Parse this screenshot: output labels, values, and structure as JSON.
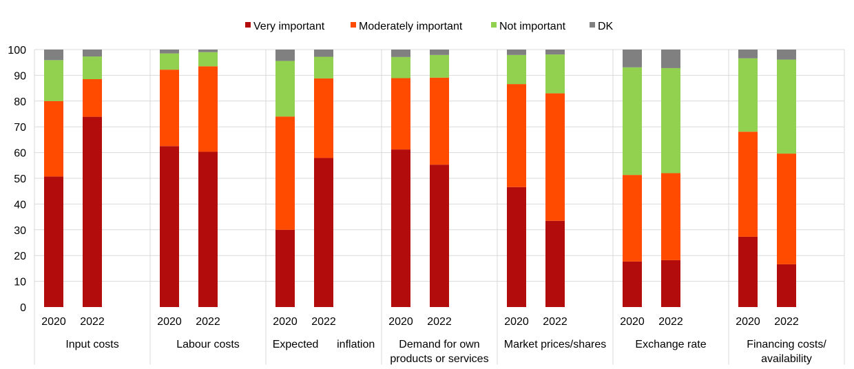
{
  "chart_data": {
    "type": "bar",
    "stacked": true,
    "groups": [
      {
        "label_lines": [
          "Input costs"
        ],
        "years": [
          "2020",
          "2022"
        ]
      },
      {
        "label_lines": [
          "Labour costs"
        ],
        "years": [
          "2020",
          "2022"
        ]
      },
      {
        "label_lines": [
          "Expected      inflation"
        ],
        "years": [
          "2020",
          "2022"
        ]
      },
      {
        "label_lines": [
          "Demand for own",
          "products or services"
        ],
        "years": [
          "2020",
          "2022"
        ]
      },
      {
        "label_lines": [
          "Market prices/shares"
        ],
        "years": [
          "2020",
          "2022"
        ]
      },
      {
        "label_lines": [
          "Exchange rate"
        ],
        "years": [
          "2020",
          "2022"
        ]
      },
      {
        "label_lines": [
          "Financing costs/",
          "availability"
        ],
        "years": [
          "2020",
          "2022"
        ]
      }
    ],
    "series": [
      {
        "name": "Very important",
        "color": "#b30c0c",
        "values": [
          [
            50.7,
            73.9
          ],
          [
            62.5,
            60.3
          ],
          [
            30.0,
            57.9
          ],
          [
            61.2,
            55.3
          ],
          [
            46.6,
            33.5
          ],
          [
            17.7,
            18.2
          ],
          [
            27.3,
            16.6
          ]
        ]
      },
      {
        "name": "Moderately important",
        "color": "#ff4b00",
        "values": [
          [
            29.3,
            14.6
          ],
          [
            29.7,
            33.2
          ],
          [
            44.0,
            30.9
          ],
          [
            27.7,
            33.8
          ],
          [
            40.0,
            49.5
          ],
          [
            33.6,
            33.8
          ],
          [
            40.8,
            43.0
          ]
        ]
      },
      {
        "name": "Not important",
        "color": "#92d050",
        "values": [
          [
            15.9,
            8.8
          ],
          [
            6.3,
            5.5
          ],
          [
            21.6,
            8.4
          ],
          [
            8.2,
            8.8
          ],
          [
            11.3,
            15.1
          ],
          [
            41.8,
            40.8
          ],
          [
            28.5,
            36.5
          ]
        ]
      },
      {
        "name": "DK",
        "color": "#808080",
        "values": [
          [
            4.1,
            2.7
          ],
          [
            1.5,
            1.0
          ],
          [
            4.4,
            2.8
          ],
          [
            2.9,
            2.1
          ],
          [
            2.1,
            1.9
          ],
          [
            6.9,
            7.2
          ],
          [
            3.4,
            3.9
          ]
        ]
      }
    ],
    "ylim": [
      0,
      100
    ],
    "yticks": [
      "0",
      "10",
      "20",
      "30",
      "40",
      "50",
      "60",
      "70",
      "80",
      "90",
      "100"
    ],
    "grid": true,
    "legend_position": "top"
  }
}
